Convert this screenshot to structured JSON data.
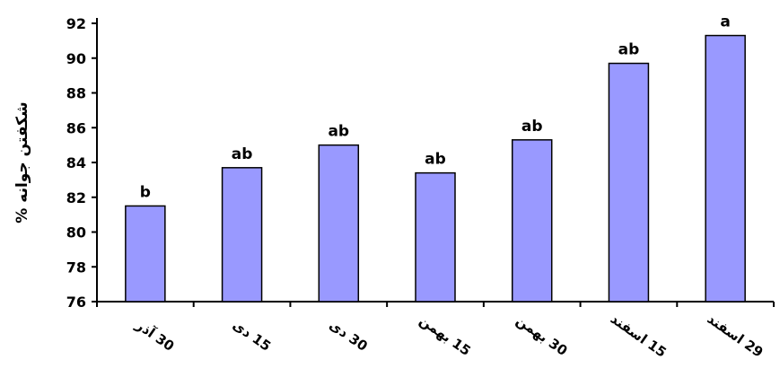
{
  "chart_data": {
    "type": "bar",
    "categories": [
      "30 آذر",
      "15 دی",
      "30 دی",
      "15 بهمن",
      "30 بهمن",
      "15 اسفند",
      "29 اسفند"
    ],
    "values": [
      81.5,
      83.7,
      85.0,
      83.4,
      85.3,
      89.7,
      91.3
    ],
    "bar_labels": [
      "b",
      "ab",
      "ab",
      "ab",
      "ab",
      "ab",
      "a"
    ],
    "ylabel": "% شکفتن جوانه",
    "xlabel": "",
    "title": "",
    "ylim": [
      76,
      92
    ],
    "yticks": [
      76,
      78,
      80,
      82,
      84,
      86,
      88,
      90,
      92
    ],
    "grid": false,
    "bar_color": "#9999ff",
    "bar_edge_color": "#000000"
  }
}
